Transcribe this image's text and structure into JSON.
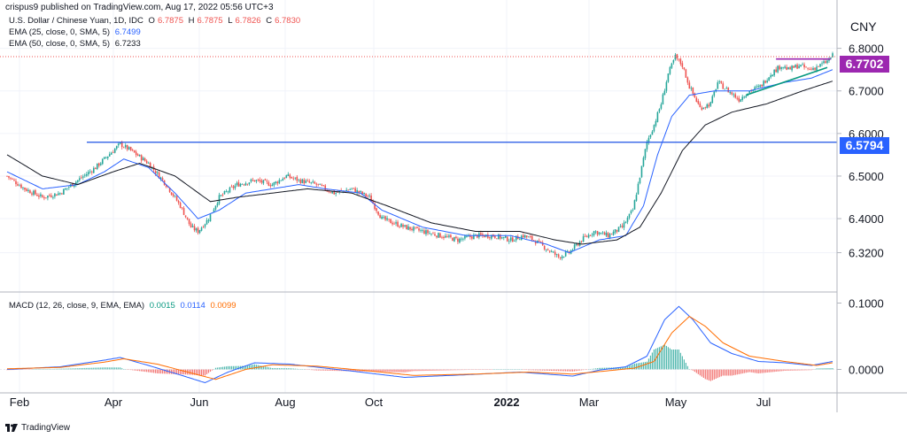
{
  "header": {
    "publisher_line": "crispus9 published on TradingView.com, Aug 17, 2022 05:56 UTC+3",
    "currency": "CNY"
  },
  "legend": {
    "symbol": "U.S. Dollar / Chinese Yuan, 1D, IDC",
    "ohlc": [
      {
        "label": "O",
        "value": "6.7875"
      },
      {
        "label": "H",
        "value": "6.7875"
      },
      {
        "label": "L",
        "value": "6.7826"
      },
      {
        "label": "C",
        "value": "6.7830"
      }
    ],
    "ema25": {
      "label": "EMA (25, close, 0, SMA, 5)",
      "value": "6.7499"
    },
    "ema50": {
      "label": "EMA (50, close, 0, SMA, 5)",
      "value": "6.7233"
    },
    "macd": {
      "label": "MACD (12, 26, close, 9, EMA, EMA)",
      "values": [
        "0.0015",
        "0.0114",
        "0.0099"
      ]
    }
  },
  "price_tags": {
    "last": "6.7702",
    "level": "6.5794"
  },
  "footer": {
    "brand": "TradingView"
  },
  "colors": {
    "up": "#26a69a",
    "down": "#ef5350",
    "ema25": "#2962ff",
    "ema50": "#131722",
    "macd_line": "#2962ff",
    "signal_line": "#ff6d00",
    "tag_last": "#9c27b0",
    "tag_level": "#2962ff",
    "hline": "#1e53e5",
    "trend": "#089981"
  },
  "chart_data": [
    {
      "type": "candlestick",
      "title": "U.S. Dollar / Chinese Yuan",
      "y_axis_ticks": [
        "6.8000",
        "6.7000",
        "6.6000",
        "6.5000",
        "6.4000",
        "6.3200"
      ],
      "x_axis_ticks": [
        "Feb",
        "Apr",
        "Jun",
        "Aug",
        "Oct",
        "2022",
        "Mar",
        "May",
        "Jul"
      ],
      "ylim": [
        6.29,
        6.82
      ],
      "last_price": 6.7702,
      "horizontal_level": 6.5794,
      "close_path": [
        [
          0,
          6.5
        ],
        [
          10,
          6.47
        ],
        [
          20,
          6.45
        ],
        [
          30,
          6.46
        ],
        [
          40,
          6.49
        ],
        [
          50,
          6.52
        ],
        [
          60,
          6.56
        ],
        [
          64,
          6.575
        ],
        [
          70,
          6.56
        ],
        [
          80,
          6.53
        ],
        [
          90,
          6.48
        ],
        [
          98,
          6.43
        ],
        [
          104,
          6.38
        ],
        [
          108,
          6.37
        ],
        [
          114,
          6.4
        ],
        [
          120,
          6.45
        ],
        [
          130,
          6.48
        ],
        [
          140,
          6.49
        ],
        [
          150,
          6.48
        ],
        [
          158,
          6.5
        ],
        [
          165,
          6.49
        ],
        [
          175,
          6.48
        ],
        [
          185,
          6.46
        ],
        [
          195,
          6.47
        ],
        [
          205,
          6.45
        ],
        [
          212,
          6.4
        ],
        [
          225,
          6.38
        ],
        [
          235,
          6.37
        ],
        [
          245,
          6.36
        ],
        [
          255,
          6.35
        ],
        [
          265,
          6.36
        ],
        [
          275,
          6.36
        ],
        [
          285,
          6.35
        ],
        [
          292,
          6.36
        ],
        [
          298,
          6.35
        ],
        [
          305,
          6.33
        ],
        [
          312,
          6.31
        ],
        [
          318,
          6.32
        ],
        [
          325,
          6.35
        ],
        [
          332,
          6.37
        ],
        [
          340,
          6.36
        ],
        [
          348,
          6.38
        ],
        [
          354,
          6.42
        ],
        [
          358,
          6.5
        ],
        [
          362,
          6.58
        ],
        [
          366,
          6.62
        ],
        [
          370,
          6.67
        ],
        [
          374,
          6.74
        ],
        [
          378,
          6.78
        ],
        [
          382,
          6.76
        ],
        [
          386,
          6.71
        ],
        [
          392,
          6.66
        ],
        [
          398,
          6.67
        ],
        [
          402,
          6.72
        ],
        [
          408,
          6.7
        ],
        [
          414,
          6.68
        ],
        [
          420,
          6.7
        ],
        [
          426,
          6.71
        ],
        [
          432,
          6.74
        ],
        [
          438,
          6.76
        ],
        [
          442,
          6.75
        ],
        [
          448,
          6.76
        ],
        [
          454,
          6.75
        ],
        [
          460,
          6.76
        ],
        [
          464,
          6.77
        ],
        [
          467,
          6.783
        ]
      ],
      "ema25_path": [
        [
          0,
          6.51
        ],
        [
          20,
          6.47
        ],
        [
          40,
          6.48
        ],
        [
          55,
          6.51
        ],
        [
          66,
          6.54
        ],
        [
          80,
          6.52
        ],
        [
          95,
          6.46
        ],
        [
          108,
          6.4
        ],
        [
          120,
          6.42
        ],
        [
          135,
          6.46
        ],
        [
          150,
          6.47
        ],
        [
          165,
          6.48
        ],
        [
          180,
          6.47
        ],
        [
          200,
          6.46
        ],
        [
          212,
          6.42
        ],
        [
          235,
          6.38
        ],
        [
          260,
          6.36
        ],
        [
          285,
          6.36
        ],
        [
          305,
          6.34
        ],
        [
          318,
          6.32
        ],
        [
          335,
          6.35
        ],
        [
          350,
          6.36
        ],
        [
          360,
          6.43
        ],
        [
          368,
          6.55
        ],
        [
          376,
          6.64
        ],
        [
          386,
          6.69
        ],
        [
          400,
          6.7
        ],
        [
          420,
          6.7
        ],
        [
          440,
          6.72
        ],
        [
          455,
          6.73
        ],
        [
          467,
          6.75
        ]
      ],
      "ema50_path": [
        [
          0,
          6.55
        ],
        [
          20,
          6.5
        ],
        [
          40,
          6.48
        ],
        [
          60,
          6.51
        ],
        [
          75,
          6.53
        ],
        [
          95,
          6.5
        ],
        [
          115,
          6.44
        ],
        [
          130,
          6.45
        ],
        [
          150,
          6.46
        ],
        [
          170,
          6.47
        ],
        [
          195,
          6.46
        ],
        [
          215,
          6.43
        ],
        [
          240,
          6.39
        ],
        [
          265,
          6.37
        ],
        [
          290,
          6.37
        ],
        [
          310,
          6.35
        ],
        [
          325,
          6.34
        ],
        [
          345,
          6.35
        ],
        [
          358,
          6.38
        ],
        [
          370,
          6.46
        ],
        [
          382,
          6.56
        ],
        [
          395,
          6.62
        ],
        [
          410,
          6.65
        ],
        [
          430,
          6.67
        ],
        [
          450,
          6.7
        ],
        [
          467,
          6.723
        ]
      ],
      "trend_segments": [
        {
          "points": [
            [
              435,
              6.775
            ],
            [
              466,
              6.775
            ]
          ],
          "color": "#9c27b0"
        },
        {
          "points": [
            [
              418,
              6.69
            ],
            [
              464,
              6.755
            ]
          ],
          "color": "#089981"
        }
      ]
    },
    {
      "type": "macd",
      "title": "MACD (12, 26, close, 9, EMA, EMA)",
      "y_axis_ticks": [
        "0.1000",
        "0.0000"
      ],
      "ylim": [
        -0.03,
        0.11
      ],
      "macd_path": [
        [
          0,
          0.0
        ],
        [
          30,
          0.004
        ],
        [
          55,
          0.014
        ],
        [
          64,
          0.018
        ],
        [
          80,
          0.006
        ],
        [
          100,
          -0.01
        ],
        [
          112,
          -0.02
        ],
        [
          125,
          -0.004
        ],
        [
          140,
          0.01
        ],
        [
          160,
          0.008
        ],
        [
          180,
          0.002
        ],
        [
          200,
          -0.004
        ],
        [
          225,
          -0.012
        ],
        [
          260,
          -0.008
        ],
        [
          290,
          -0.004
        ],
        [
          310,
          -0.008
        ],
        [
          320,
          -0.01
        ],
        [
          335,
          -0.001
        ],
        [
          350,
          0.004
        ],
        [
          362,
          0.02
        ],
        [
          372,
          0.075
        ],
        [
          380,
          0.095
        ],
        [
          388,
          0.075
        ],
        [
          398,
          0.04
        ],
        [
          410,
          0.024
        ],
        [
          425,
          0.012
        ],
        [
          440,
          0.01
        ],
        [
          455,
          0.006
        ],
        [
          467,
          0.012
        ]
      ],
      "signal_path": [
        [
          0,
          0.001
        ],
        [
          30,
          0.003
        ],
        [
          55,
          0.011
        ],
        [
          66,
          0.016
        ],
        [
          85,
          0.008
        ],
        [
          105,
          -0.006
        ],
        [
          118,
          -0.015
        ],
        [
          135,
          0.0
        ],
        [
          150,
          0.007
        ],
        [
          175,
          0.005
        ],
        [
          200,
          -0.001
        ],
        [
          230,
          -0.009
        ],
        [
          265,
          -0.007
        ],
        [
          295,
          -0.004
        ],
        [
          320,
          -0.007
        ],
        [
          340,
          -0.002
        ],
        [
          355,
          0.002
        ],
        [
          366,
          0.012
        ],
        [
          376,
          0.055
        ],
        [
          386,
          0.08
        ],
        [
          395,
          0.065
        ],
        [
          405,
          0.04
        ],
        [
          420,
          0.02
        ],
        [
          440,
          0.012
        ],
        [
          458,
          0.006
        ],
        [
          467,
          0.01
        ]
      ]
    }
  ]
}
